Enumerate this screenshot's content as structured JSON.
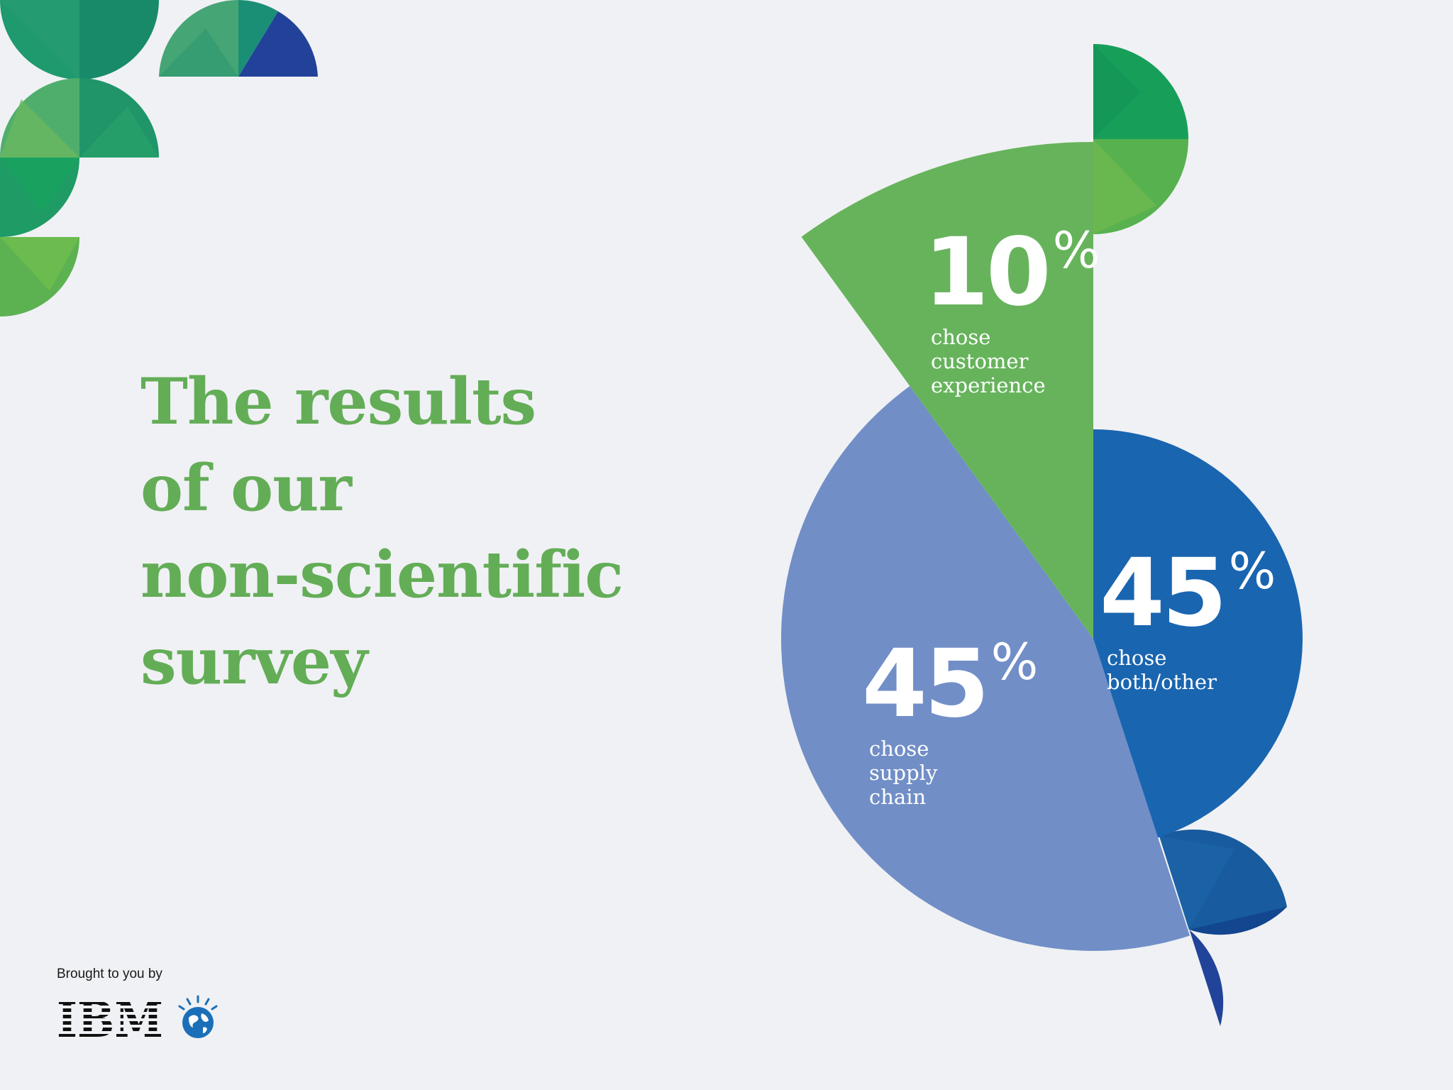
{
  "title": {
    "lines": [
      "The results",
      "of our",
      "non-scientific",
      "survey"
    ]
  },
  "chart_data": {
    "type": "pie",
    "title": "The results of our non-scientific survey",
    "slices": [
      {
        "label": "chose customer experience",
        "value": 10,
        "color": "#67b35c"
      },
      {
        "label": "chose both/other",
        "value": 45,
        "color": "#1a65b0"
      },
      {
        "label": "chose supply chain",
        "value": 45,
        "color": "#718ec7"
      }
    ]
  },
  "labels": {
    "cx": {
      "value": "10",
      "unit": "%",
      "caption": [
        "chose",
        "customer",
        "experience"
      ]
    },
    "both": {
      "value": "45",
      "unit": "%",
      "caption": [
        "chose",
        "both/other"
      ]
    },
    "supply": {
      "value": "45",
      "unit": "%",
      "caption": [
        "chose",
        "supply",
        "chain"
      ]
    }
  },
  "footer": {
    "brought_by": "Brought to you by",
    "logo_text": "IBM"
  },
  "colors": {
    "title_green": "#63ad57",
    "background": "#f0f1f4"
  }
}
